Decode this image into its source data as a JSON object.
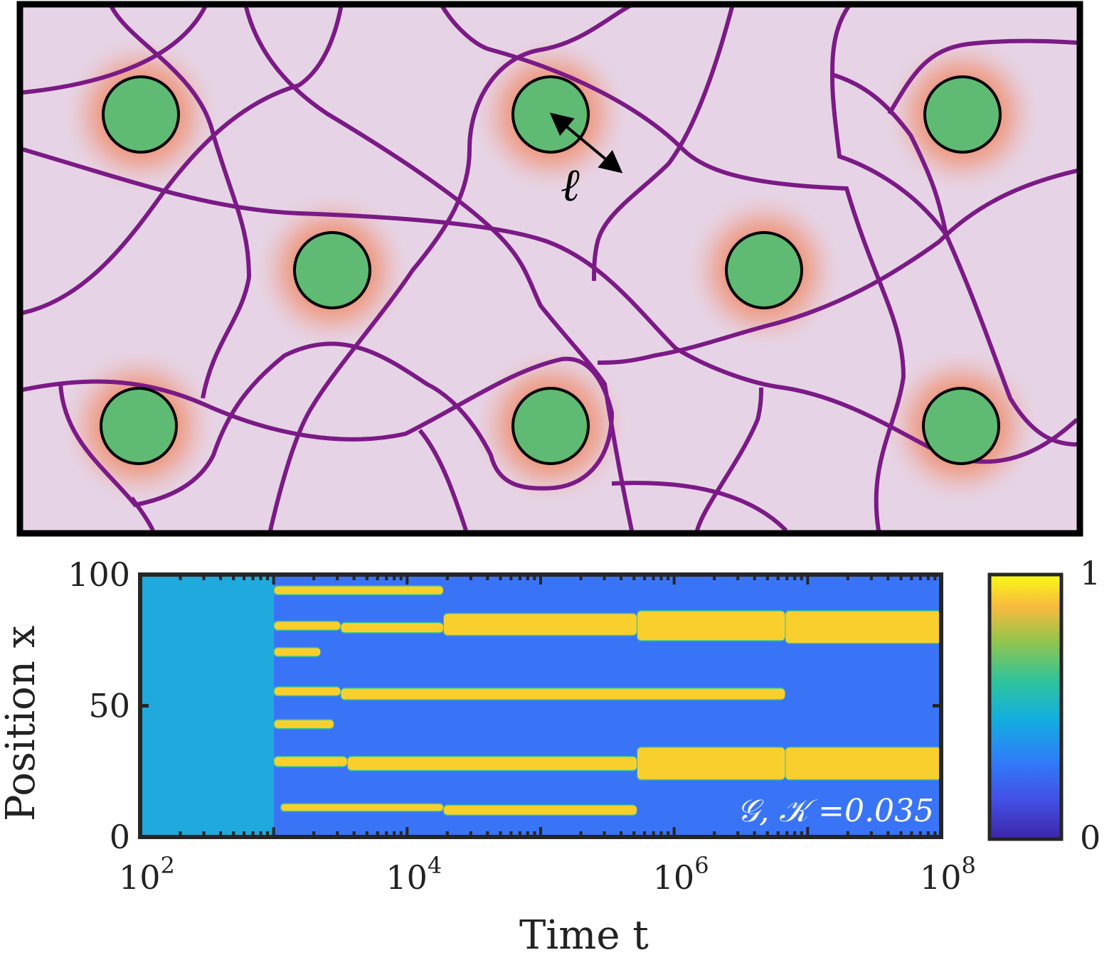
{
  "diagram": {
    "length_label": "ℓ",
    "colors": {
      "background": "#e6d4e6",
      "fibers": "#7b1a86",
      "particles": "#5fbb74",
      "halo": "#ef7a50"
    }
  },
  "chart_data": {
    "type": "heatmap",
    "title": "",
    "xlabel": "Time t",
    "ylabel": "Position x",
    "xscale": "log",
    "xlim_log10": [
      2,
      8
    ],
    "ylim": [
      0,
      100
    ],
    "xtick_labels": [
      {
        "base": "10",
        "exp": "2"
      },
      {
        "base": "10",
        "exp": "4"
      },
      {
        "base": "10",
        "exp": "6"
      },
      {
        "base": "10",
        "exp": "8"
      }
    ],
    "xtick_values_log10": [
      2,
      4,
      6,
      8
    ],
    "ytick_labels": [
      "0",
      "50",
      "100"
    ],
    "ytick_values": [
      0,
      50,
      100
    ],
    "annotation": "𝒢, 𝒦 =0.035",
    "colorbar": {
      "min_label": "0",
      "max_label": "1",
      "min": 0,
      "max": 1
    },
    "background_states": [
      {
        "t_log10": [
          2,
          3.0
        ],
        "value": 0.4,
        "color": "#20a9dc"
      },
      {
        "t_log10": [
          3.0,
          8
        ],
        "value": 0.25,
        "color": "#3a74f6"
      }
    ],
    "high_value_color": "#f9cf2e",
    "bands": [
      {
        "t_log10": [
          3.0,
          4.27
        ],
        "x_range": [
          92.5,
          95.5
        ]
      },
      {
        "t_log10": [
          3.0,
          3.5
        ],
        "x_range": [
          79,
          82
        ]
      },
      {
        "t_log10": [
          3.5,
          4.27
        ],
        "x_range": [
          78,
          81.5
        ]
      },
      {
        "t_log10": [
          4.27,
          5.72
        ],
        "x_range": [
          77,
          85
        ]
      },
      {
        "t_log10": [
          5.72,
          6.83
        ],
        "x_range": [
          75,
          86
        ]
      },
      {
        "t_log10": [
          6.83,
          8
        ],
        "x_range": [
          74,
          86
        ]
      },
      {
        "t_log10": [
          3.0,
          3.35
        ],
        "x_range": [
          69,
          72
        ]
      },
      {
        "t_log10": [
          3.0,
          3.5
        ],
        "x_range": [
          54,
          57
        ]
      },
      {
        "t_log10": [
          3.5,
          6.83
        ],
        "x_range": [
          52.5,
          56.5
        ]
      },
      {
        "t_log10": [
          3.0,
          3.45
        ],
        "x_range": [
          41.5,
          44.5
        ]
      },
      {
        "t_log10": [
          3.0,
          3.55
        ],
        "x_range": [
          27,
          30.5
        ]
      },
      {
        "t_log10": [
          3.55,
          5.72
        ],
        "x_range": [
          25.5,
          30.5
        ]
      },
      {
        "t_log10": [
          5.72,
          6.83
        ],
        "x_range": [
          22,
          34
        ]
      },
      {
        "t_log10": [
          6.83,
          8
        ],
        "x_range": [
          22,
          34
        ]
      },
      {
        "t_log10": [
          3.05,
          4.27
        ],
        "x_range": [
          10,
          12.5
        ]
      },
      {
        "t_log10": [
          4.27,
          5.72
        ],
        "x_range": [
          8.5,
          12
        ]
      }
    ]
  }
}
